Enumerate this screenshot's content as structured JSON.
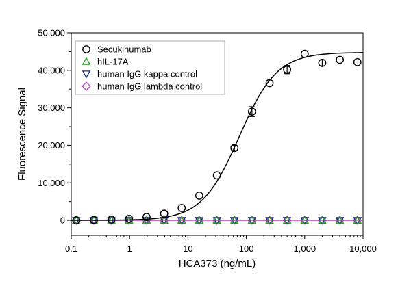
{
  "chart_data": {
    "type": "scatter",
    "xlabel": "HCA373 (ng/mL)",
    "ylabel": "Fluorescence Signal",
    "xscale": "log",
    "xlim": [
      0.1,
      10000
    ],
    "ylim": [
      -4000,
      50000
    ],
    "x_ticks": [
      0.1,
      1,
      10,
      100,
      1000,
      10000
    ],
    "x_tick_labels": [
      "0.1",
      "1",
      "10",
      "100",
      "1,000",
      "10,000"
    ],
    "y_ticks": [
      0,
      10000,
      20000,
      30000,
      40000,
      50000
    ],
    "y_tick_labels": [
      "0",
      "10,000",
      "20,000",
      "30,000",
      "40,000",
      "50,000"
    ],
    "legend_position": "top-left",
    "x": [
      0.122,
      0.244,
      0.488,
      0.977,
      1.95,
      3.91,
      7.81,
      15.6,
      31.3,
      62.5,
      125,
      250,
      500,
      1000,
      2000,
      4000,
      8000
    ],
    "series": [
      {
        "name": "Secukinumab",
        "marker": "circle",
        "color": "#000000",
        "values": [
          0,
          100,
          200,
          400,
          900,
          1800,
          3300,
          6600,
          12000,
          19300,
          29000,
          36600,
          40200,
          44400,
          42000,
          42800,
          42200
        ],
        "errors": [
          0,
          0,
          0,
          0,
          0,
          0,
          0,
          0,
          0,
          700,
          1300,
          0,
          1100,
          0,
          800,
          0,
          0
        ],
        "fit": {
          "bottom": 0,
          "top": 44800,
          "ec50": 76,
          "hill": 1.35,
          "color": "#000000"
        }
      },
      {
        "name": "hIL-17A",
        "marker": "triangle-up",
        "color": "#1a9a1a",
        "values": [
          0,
          0,
          0,
          0,
          0,
          0,
          0,
          0,
          0,
          0,
          0,
          0,
          0,
          0,
          0,
          0,
          0
        ]
      },
      {
        "name": "human IgG kappa control",
        "marker": "triangle-down",
        "color": "#1c2a90",
        "values": [
          0,
          0,
          0,
          0,
          0,
          0,
          0,
          0,
          0,
          0,
          0,
          0,
          0,
          0,
          0,
          0,
          0
        ]
      },
      {
        "name": "human IgG lambda control",
        "marker": "diamond",
        "color": "#c03cc0",
        "values": [
          0,
          0,
          0,
          0,
          0,
          0,
          0,
          0,
          0,
          0,
          0,
          0,
          0,
          0,
          0,
          0,
          0
        ],
        "line": true
      }
    ]
  }
}
